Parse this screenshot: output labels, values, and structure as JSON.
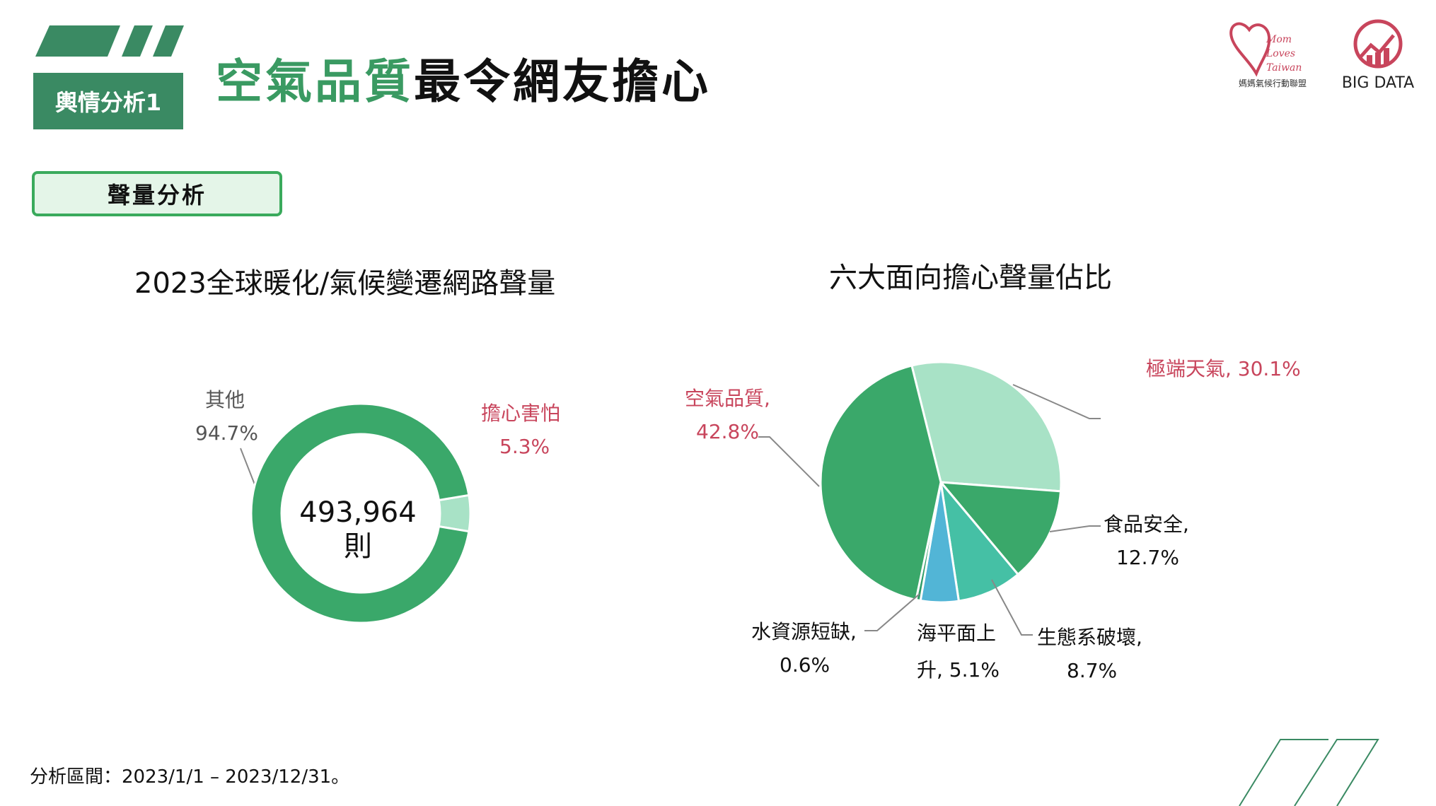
{
  "header": {
    "section_label": "輿情分析1",
    "title_accent": "空氣品質",
    "title_rest": "最令網友擔心"
  },
  "subheader": {
    "label": "聲量分析"
  },
  "logos": {
    "mom_loves_taiwan": {
      "line1": "Mom",
      "line2": "Loves",
      "line3": "Taiwan",
      "caption": "媽媽氣候行動聯盟"
    },
    "big_data": {
      "text": "BIG DATA"
    }
  },
  "chart_data": [
    {
      "type": "pie",
      "title": "2023全球暖化/氣候變遷網路聲量",
      "center_value": "493,964",
      "center_unit": "則",
      "slices": [
        {
          "label": "其他",
          "value": 94.7,
          "value_text": "94.7%",
          "color": "#3aa86a"
        },
        {
          "label": "擔心害怕",
          "value": 5.3,
          "value_text": "5.3%",
          "color": "#a8e2c6"
        }
      ]
    },
    {
      "type": "pie",
      "title": "六大面向擔心聲量佔比",
      "slices": [
        {
          "label": "極端天氣",
          "value": 30.1,
          "label_text": "極端天氣, 30.1%",
          "color": "#a8e2c6"
        },
        {
          "label": "食品安全",
          "value": 12.7,
          "label_text": "食品安全,",
          "value_text": "12.7%",
          "color": "#3aa86a"
        },
        {
          "label": "生態系破壞",
          "value": 8.7,
          "label_text": "生態系破壞,",
          "value_text": "8.7%",
          "color": "#45c0a5"
        },
        {
          "label": "海平面上升",
          "value": 5.1,
          "label_text": "海平面上",
          "value_text": "升, 5.1%",
          "color": "#52b5d6"
        },
        {
          "label": "水資源短缺",
          "value": 0.6,
          "label_text": "水資源短缺,",
          "value_text": "0.6%",
          "color": "#2e9c68"
        },
        {
          "label": "空氣品質",
          "value": 42.8,
          "label_text": "空氣品質,",
          "value_text": "42.8%",
          "color": "#3aa86a"
        }
      ]
    }
  ],
  "footnote": "分析區間：2023/1/1 – 2023/12/31。",
  "colors": {
    "accent_green": "#3a8a63",
    "title_green": "#3a9a62",
    "highlight_red": "#c8455c"
  }
}
